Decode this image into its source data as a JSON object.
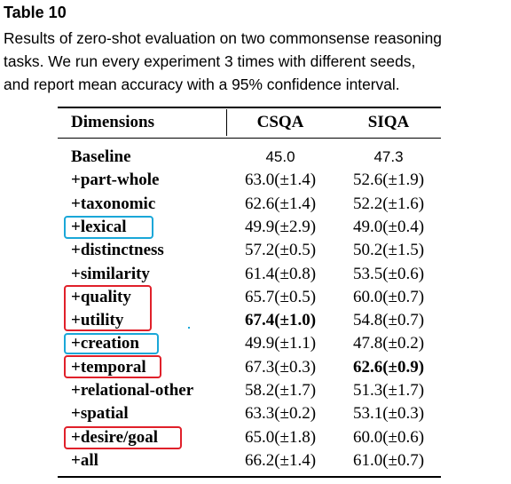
{
  "caption": {
    "title": "Table 10",
    "lines": [
      "Results of zero-shot evaluation on two commonsense reasoning",
      "tasks.  We run every experiment 3 times with different seeds,",
      "and report mean accuracy with a 95% confidence interval."
    ]
  },
  "table": {
    "header": [
      "Dimensions",
      "CSQA",
      "SIQA"
    ],
    "rows": [
      [
        "Baseline",
        "45.0",
        "47.3"
      ],
      [
        "+part-whole",
        "63.0(±1.4)",
        "52.6(±1.9)"
      ],
      [
        "+taxonomic",
        "62.6(±1.4)",
        "52.2(±1.6)"
      ],
      [
        "+lexical",
        "49.9(±2.9)",
        "49.0(±0.4)"
      ],
      [
        "+distinctness",
        "57.2(±0.5)",
        "50.2(±1.5)"
      ],
      [
        "+similarity",
        "61.4(±0.8)",
        "53.5(±0.6)"
      ],
      [
        "+quality",
        "65.7(±0.5)",
        "60.0(±0.7)"
      ],
      [
        "+utility",
        "67.4(±1.0)",
        "54.8(±0.7)"
      ],
      [
        "+creation",
        "49.9(±1.1)",
        "47.8(±0.2)"
      ],
      [
        "+temporal",
        "67.3(±0.3)",
        "62.6(±0.9)"
      ],
      [
        "+relational-other",
        "58.2(±1.7)",
        "51.3(±1.7)"
      ],
      [
        "+spatial",
        "63.3(±0.2)",
        "53.1(±0.3)"
      ],
      [
        "+desire/goal",
        "65.0(±1.8)",
        "60.0(±0.6)"
      ],
      [
        "+all",
        "66.2(±1.4)",
        "61.0(±0.7)"
      ]
    ]
  }
}
